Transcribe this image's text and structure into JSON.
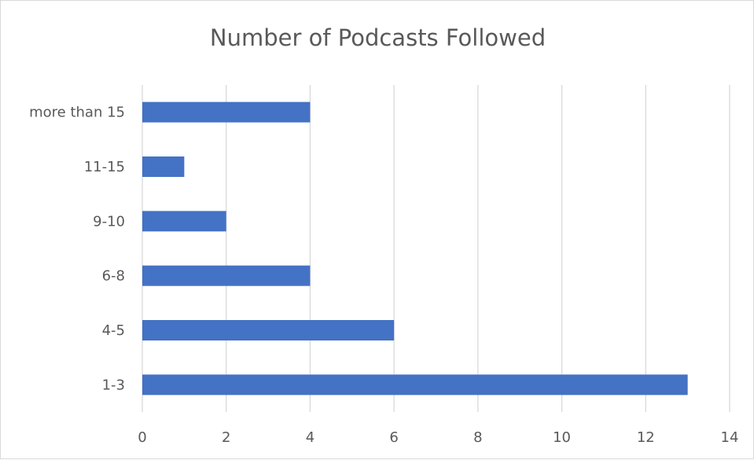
{
  "chart_data": {
    "type": "bar",
    "orientation": "horizontal",
    "title": "Number of Podcasts Followed",
    "xlabel": "",
    "ylabel": "",
    "categories": [
      "1-3",
      "4-5",
      "6-8",
      "9-10",
      "11-15",
      "more than 15"
    ],
    "values": [
      13,
      6,
      4,
      2,
      1,
      4
    ],
    "xlim": [
      0,
      14
    ],
    "x_ticks": [
      0,
      2,
      4,
      6,
      8,
      10,
      12,
      14
    ],
    "grid": "vertical",
    "legend": "none",
    "bar_color": "#4472c4",
    "grid_color": "#d9d9d9"
  }
}
